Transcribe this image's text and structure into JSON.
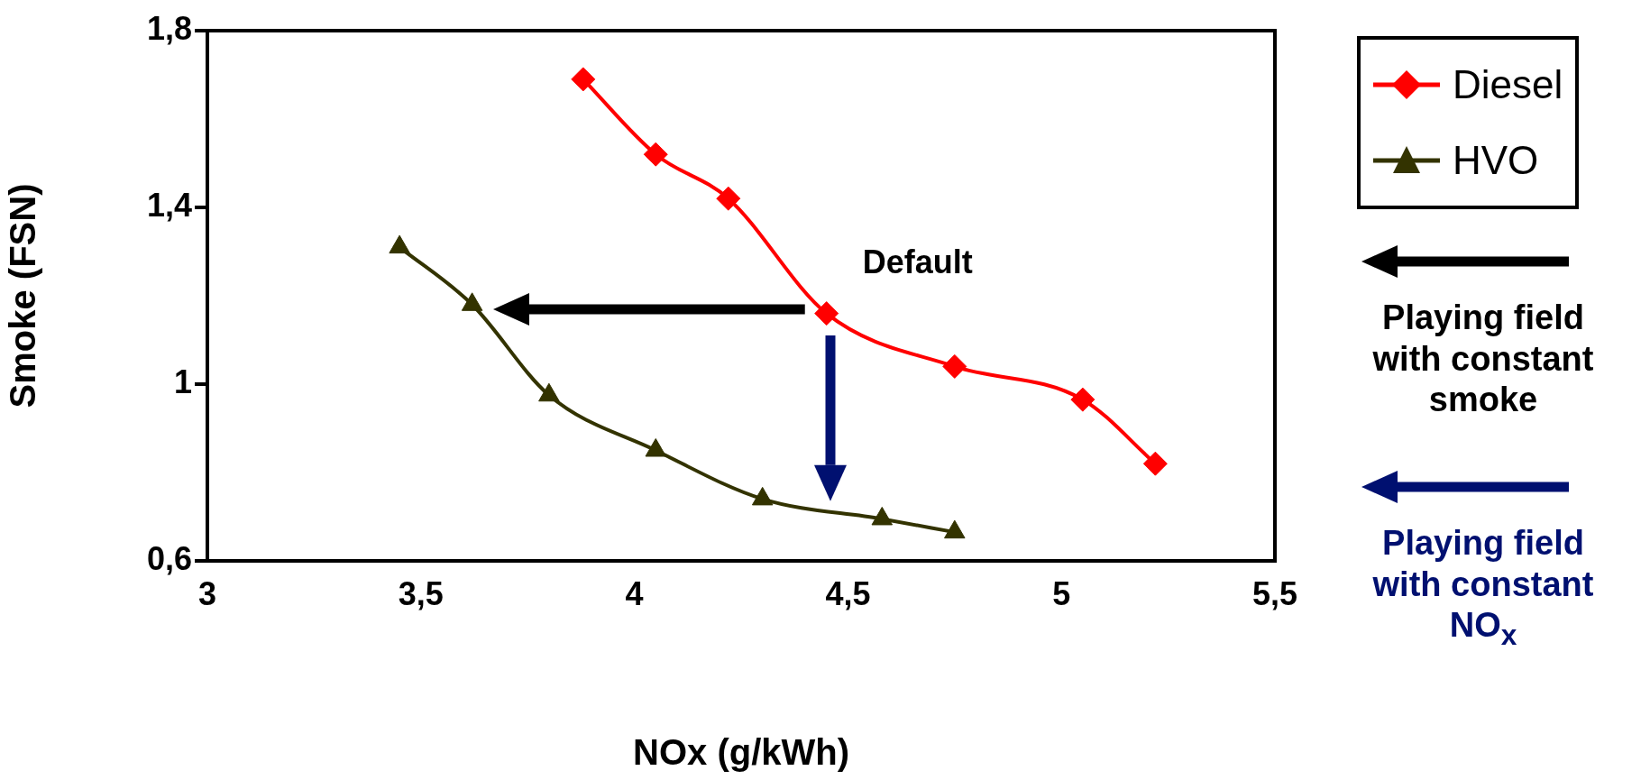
{
  "chart_data": {
    "type": "line",
    "xlabel": "NOx (g/kWh)",
    "ylabel": "Smoke (FSN)",
    "xlim": [
      3,
      5.5
    ],
    "xticks": [
      3,
      {
        "value": 3.5,
        "label": "3,5"
      },
      4,
      {
        "value": 4.5,
        "label": "4,5"
      },
      5,
      {
        "value": 5.5,
        "label": "5,5"
      }
    ],
    "ylim": [
      0.6,
      1.8
    ],
    "yticks": [
      {
        "value": 0.6,
        "label": "0,6"
      },
      1,
      {
        "value": 1.4,
        "label": "1,4"
      },
      {
        "value": 1.8,
        "label": "1,8"
      }
    ],
    "grid": false,
    "legend": "top right",
    "series": [
      {
        "name": "Diesel",
        "color": "#ff0000",
        "marker": "diamond",
        "x": [
          3.88,
          4.05,
          4.22,
          4.45,
          4.75,
          5.05,
          5.22
        ],
        "values": [
          1.69,
          1.52,
          1.42,
          1.16,
          1.04,
          0.965,
          0.82
        ]
      },
      {
        "name": "HVO",
        "color": "#333300",
        "marker": "triangle",
        "x": [
          3.45,
          3.62,
          3.8,
          4.05,
          4.3,
          4.58,
          4.75
        ],
        "values": [
          1.31,
          1.18,
          0.975,
          0.85,
          0.74,
          0.695,
          0.665
        ]
      }
    ],
    "annotations": [
      {
        "text": "Default",
        "x": 4.45,
        "y": 1.16
      },
      "Playing field with constant smoke",
      "Playing field with constant NO$_{x}$"
    ]
  }
}
